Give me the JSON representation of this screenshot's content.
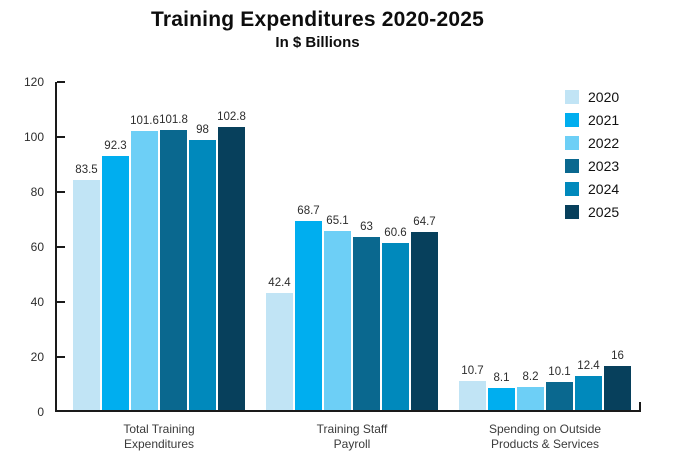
{
  "header": {
    "title": "Training Expenditures 2020-2025",
    "subtitle": "In $ Billions"
  },
  "chart_data": {
    "type": "bar",
    "title": "Training Expenditures 2020-2025",
    "subtitle": "In $ Billions",
    "categories": [
      "Total Training\nExpenditures",
      "Training Staff\nPayroll",
      "Spending on Outside\nProducts & Services"
    ],
    "series": [
      {
        "name": "2020",
        "color": "#C1E4F5",
        "values": [
          83.5,
          42.4,
          10.7
        ]
      },
      {
        "name": "2021",
        "color": "#00AEEF",
        "values": [
          92.3,
          68.7,
          8.1
        ]
      },
      {
        "name": "2022",
        "color": "#6DCFF6",
        "values": [
          101.6,
          65.1,
          8.2
        ]
      },
      {
        "name": "2023",
        "color": "#0A688F",
        "values": [
          101.8,
          63,
          10.1
        ]
      },
      {
        "name": "2024",
        "color": "#0089BC",
        "values": [
          98,
          60.6,
          12.4
        ]
      },
      {
        "name": "2025",
        "color": "#07405C",
        "values": [
          102.8,
          64.7,
          16
        ]
      }
    ],
    "ylim": [
      0,
      120
    ],
    "yticks": [
      0,
      20,
      40,
      60,
      80,
      100,
      120
    ],
    "grid": false,
    "value_labels": true,
    "legend_position": "top-right",
    "axis_color": "#1a1a1a",
    "label_color": "#2d2d2d"
  }
}
